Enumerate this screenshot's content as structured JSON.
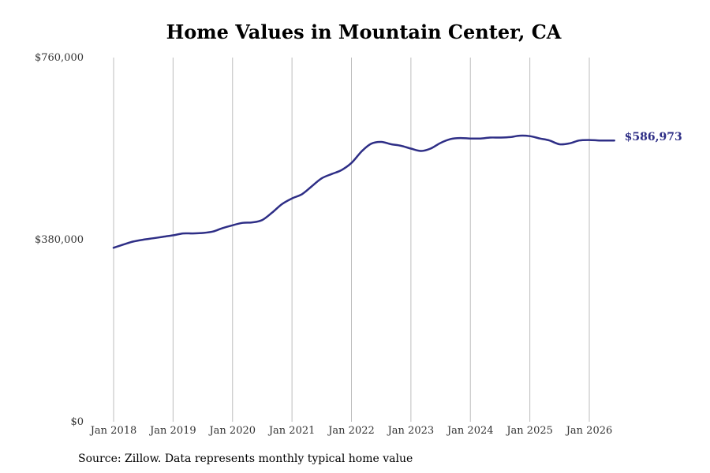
{
  "chart_data": {
    "type": "line",
    "title": "Home Values in Mountain Center, CA",
    "xlabel": "",
    "ylabel": "",
    "ylim": [
      0,
      760000
    ],
    "y_ticks": [
      {
        "value": 0,
        "label": "$0"
      },
      {
        "value": 380000,
        "label": "$380,000"
      },
      {
        "value": 760000,
        "label": "$760,000"
      }
    ],
    "x_ticks": [
      {
        "value": 2018,
        "label": "Jan 2018"
      },
      {
        "value": 2019,
        "label": "Jan 2019"
      },
      {
        "value": 2020,
        "label": "Jan 2020"
      },
      {
        "value": 2021,
        "label": "Jan 2021"
      },
      {
        "value": 2022,
        "label": "Jan 2022"
      },
      {
        "value": 2023,
        "label": "Jan 2023"
      },
      {
        "value": 2024,
        "label": "Jan 2024"
      },
      {
        "value": 2025,
        "label": "Jan 2025"
      },
      {
        "value": 2026,
        "label": "Jan 2026"
      }
    ],
    "xlim": [
      2018,
      2026
    ],
    "grid": "vertical",
    "line_color": "#2e2e86",
    "end_label": "$586,973",
    "series": [
      {
        "x": [
          2018.0,
          2018.17,
          2018.33,
          2018.5,
          2018.67,
          2018.83,
          2019.0,
          2019.17,
          2019.33,
          2019.5,
          2019.67,
          2019.83,
          2020.0,
          2020.17,
          2020.33,
          2020.5,
          2020.67,
          2020.83,
          2021.0,
          2021.17,
          2021.33,
          2021.5,
          2021.67,
          2021.83,
          2022.0,
          2022.17,
          2022.33,
          2022.5,
          2022.67,
          2022.83,
          2023.0,
          2023.17,
          2023.33,
          2023.5,
          2023.67,
          2023.83,
          2024.0,
          2024.17,
          2024.33,
          2024.5,
          2024.67,
          2024.83,
          2025.0,
          2025.17,
          2025.33,
          2025.5,
          2025.67,
          2025.83,
          2026.0,
          2026.17,
          2026.33,
          2026.42
        ],
        "values": [
          363000,
          370000,
          376000,
          380000,
          383000,
          386000,
          389000,
          393000,
          393000,
          394000,
          397000,
          404000,
          410000,
          415000,
          416000,
          421000,
          437000,
          454000,
          466000,
          475000,
          491000,
          508000,
          517000,
          525000,
          540000,
          564000,
          580000,
          584000,
          579000,
          576000,
          570000,
          565000,
          570000,
          582000,
          590000,
          592000,
          591000,
          591000,
          593000,
          593000,
          594000,
          597000,
          596000,
          591000,
          587000,
          579000,
          581000,
          587000,
          588000,
          587000,
          586973,
          586973
        ]
      }
    ]
  },
  "source": "Source: Zillow. Data represents monthly typical home value"
}
